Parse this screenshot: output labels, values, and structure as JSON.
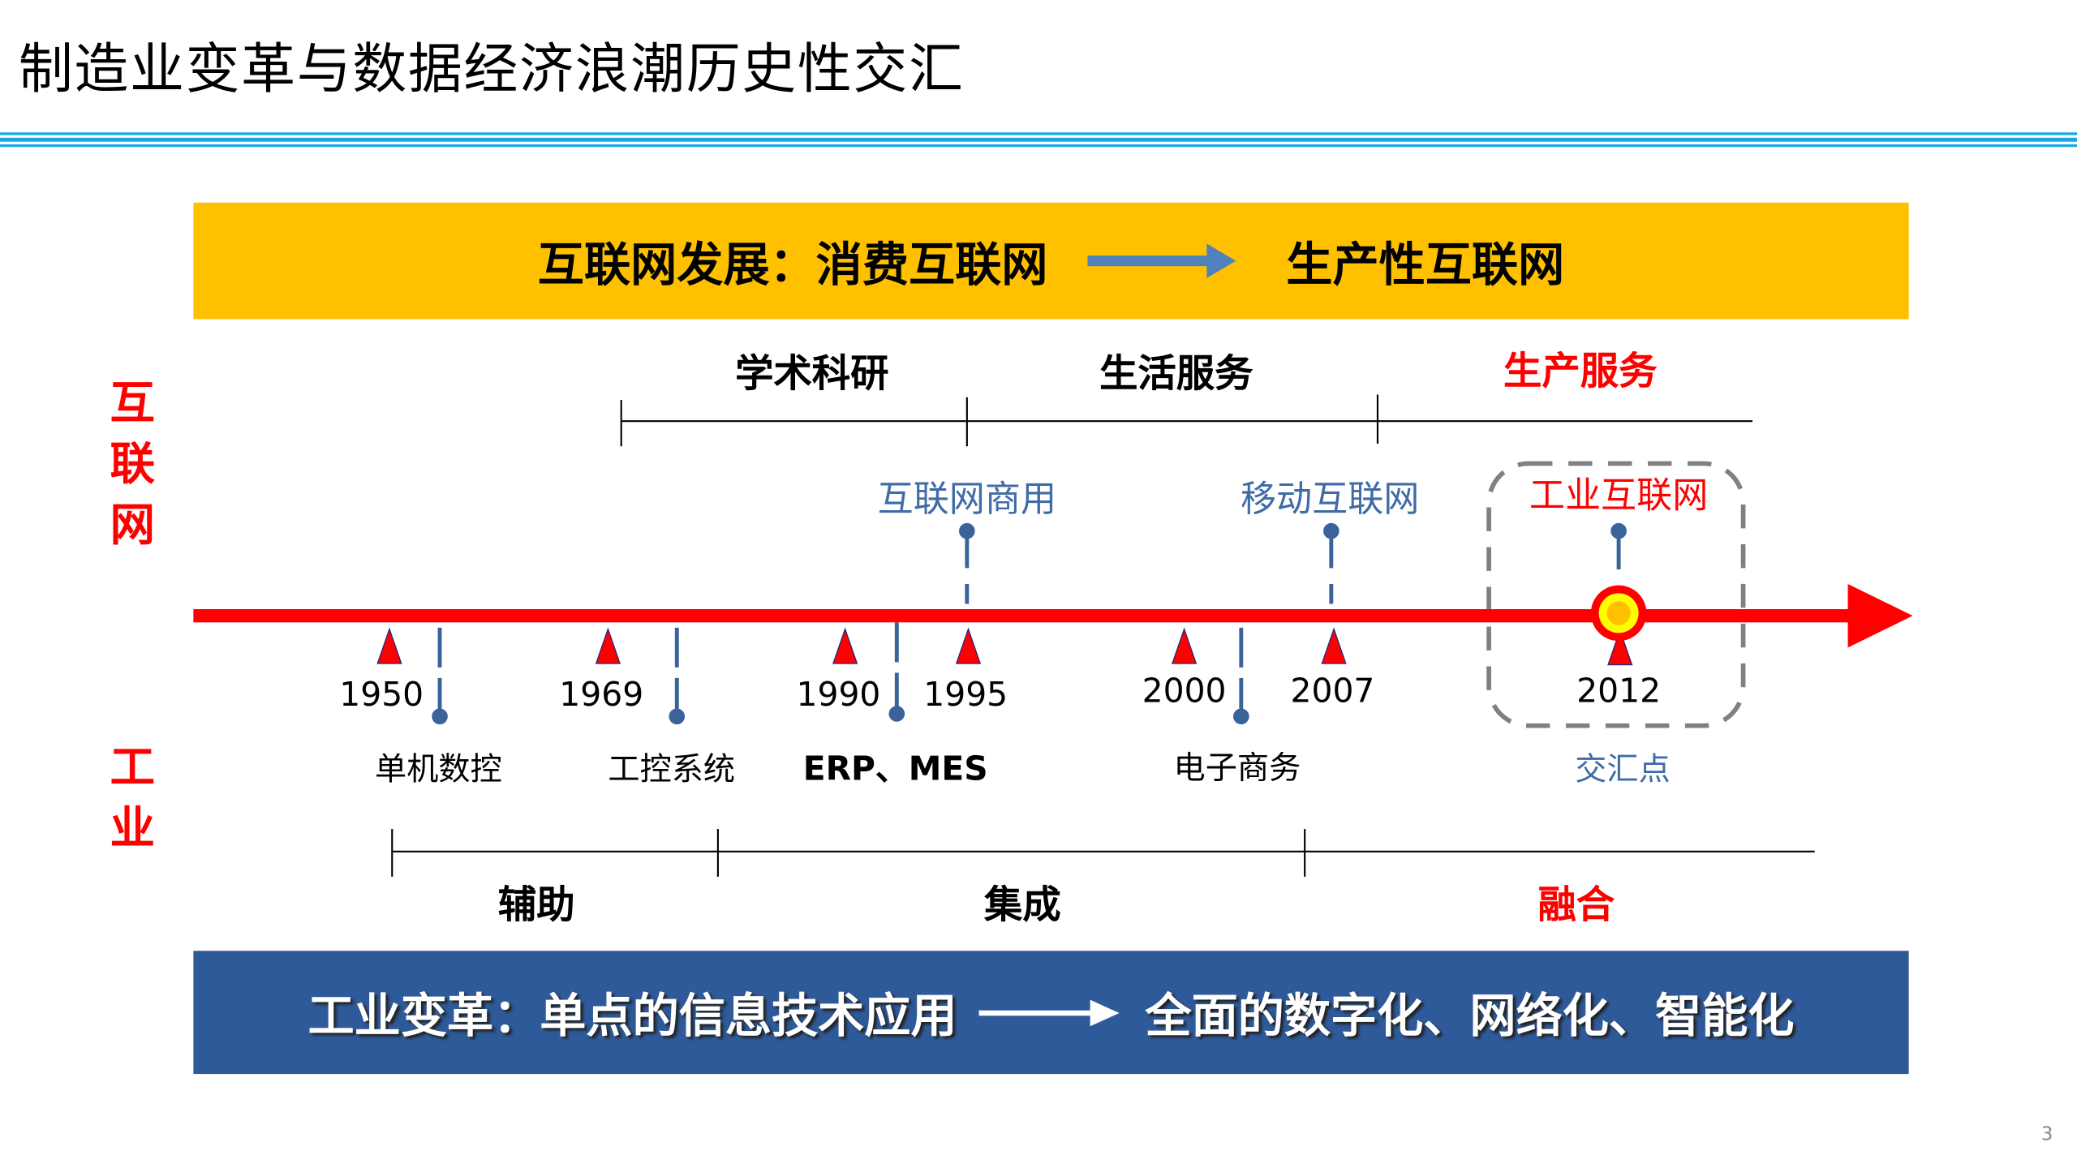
{
  "title": "制造业变革与数据经济浪潮历史性交汇",
  "top_banner": {
    "prefix": "互联网发展：",
    "from": "消费互联网",
    "to": "生产性互联网",
    "color": "#FFC000",
    "arrow_color": "#4F81BD"
  },
  "bottom_banner": {
    "prefix": "工业变革：",
    "from": "单点的信息技术应用",
    "to": "全面的数字化、网络化、智能化",
    "color": "#2F5A99"
  },
  "side_labels": {
    "internet": "互联网",
    "industry": "工业"
  },
  "internet_phases": [
    "学术科研",
    "生活服务",
    "生产服务"
  ],
  "internet_events": [
    "互联网商用",
    "移动互联网",
    "工业互联网"
  ],
  "years": [
    "1950",
    "1969",
    "1990",
    "1995",
    "2000",
    "2007",
    "2012"
  ],
  "industry_events": [
    "单机数控",
    "工控系统",
    "ERP、MES",
    "电子商务",
    "交汇点"
  ],
  "industry_phases": [
    "辅助",
    "集成",
    "融合"
  ],
  "page_number": "3",
  "colors": {
    "axis": "#FF0000",
    "event_blue": "#3F6BA6",
    "highlight": "#FF0000"
  }
}
